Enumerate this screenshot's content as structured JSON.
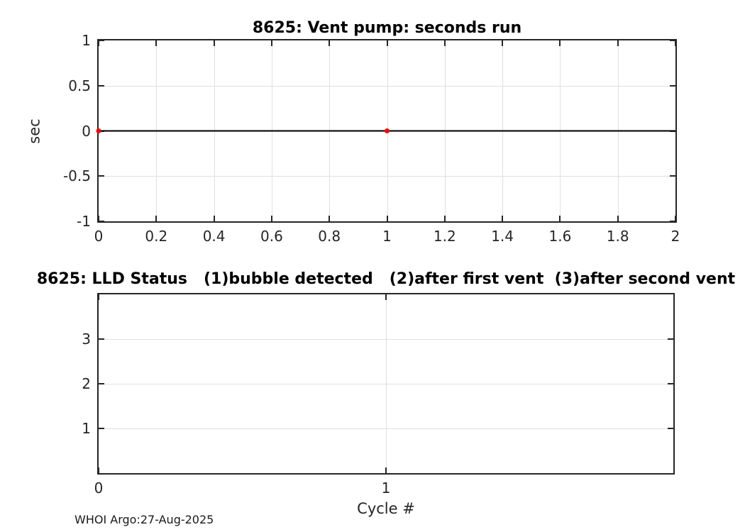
{
  "figure": {
    "footer": "WHOI Argo:27-Aug-2025",
    "colors": {
      "axis": "#262626",
      "grid": "#e0e0e0",
      "background": "#ffffff",
      "marker_red": "#ff0000",
      "line_black": "#000000"
    }
  },
  "chart_data": [
    {
      "type": "line",
      "title": "8625: Vent pump: seconds run",
      "xlabel": "",
      "ylabel": "sec",
      "xlim": [
        0,
        2
      ],
      "ylim": [
        -1,
        1
      ],
      "grid": true,
      "legend": null,
      "xticks": [
        0,
        0.2,
        0.4,
        0.6,
        0.8,
        1,
        1.2,
        1.4,
        1.6,
        1.8,
        2
      ],
      "xtick_labels": [
        "0",
        "0.2",
        "0.4",
        "0.6",
        "0.8",
        "1",
        "1.2",
        "1.4",
        "1.6",
        "1.8",
        "2"
      ],
      "yticks": [
        -1,
        -0.5,
        0,
        0.5,
        1
      ],
      "ytick_labels": [
        "-1",
        "-0.5",
        "0",
        "0.5",
        "1"
      ],
      "series": [
        {
          "name": "zero-reference-line",
          "mode": "line",
          "color": "#000000",
          "width": 2,
          "x": [
            0,
            2
          ],
          "y": [
            0,
            0
          ]
        },
        {
          "name": "vent-pump-seconds-run",
          "mode": "scatter",
          "color": "#ff0000",
          "marker": "dot",
          "marker_radius": 3.5,
          "x": [
            0,
            1
          ],
          "y": [
            0,
            0
          ]
        }
      ]
    },
    {
      "type": "line",
      "title": "8625: LLD Status   (1)bubble detected   (2)after first vent  (3)after second vent",
      "xlabel": "Cycle #",
      "ylabel": "",
      "xlim": [
        0,
        2
      ],
      "ylim": [
        0,
        4
      ],
      "grid": true,
      "legend": null,
      "xticks": [
        0,
        1
      ],
      "xtick_labels": [
        "0",
        "1"
      ],
      "yticks": [
        1,
        2,
        3
      ],
      "ytick_labels": [
        "1",
        "2",
        "3"
      ],
      "series": []
    }
  ]
}
